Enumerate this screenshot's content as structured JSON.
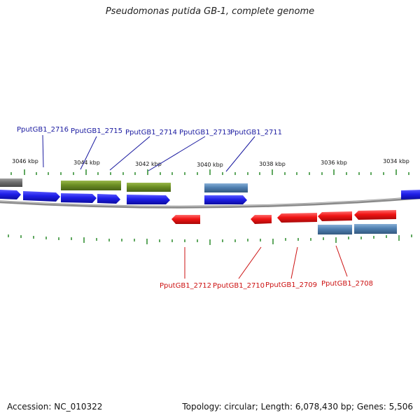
{
  "title": "Pseudomonas putida GB-1, complete genome",
  "footer": {
    "accession": "Accession: NC_010322",
    "summary": "Topology: circular; Length: 6,078,430 bp; Genes: 5,506"
  },
  "colors": {
    "forward_gene": "#1f1fe8",
    "reverse_gene": "#f01414",
    "green_feature": "#6b8e23",
    "steel_feature": "#4f7fb0",
    "gray_feature": "#6e6e6e",
    "tick": "#2a8a2a",
    "label_top": "#1a1aa0",
    "label_bottom": "#cc1111",
    "backbone": "#888888"
  },
  "ticks": [
    "3046 kbp",
    "3044 kbp",
    "3042 kbp",
    "3040 kbp",
    "3038 kbp",
    "3036 kbp",
    "3034 kbp"
  ],
  "labels_top": [
    "PputGB1_2716",
    "PputGB1_2715",
    "PputGB1_2714",
    "PputGB1_2713",
    "PputGB1_2711"
  ],
  "labels_bottom": [
    "PputGB1_2712",
    "PputGB1_2710",
    "PputGB1_2709",
    "PputGB1_2708"
  ]
}
